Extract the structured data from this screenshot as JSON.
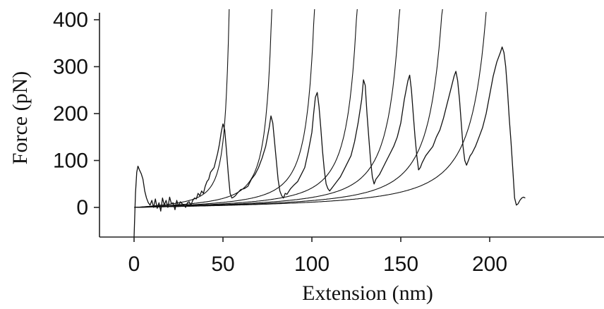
{
  "chart_data": {
    "type": "line",
    "xlabel": "Extension (nm)",
    "ylabel": "Force (pN)",
    "xlim": [
      -15,
      220
    ],
    "ylim": [
      -70,
      415
    ],
    "x_ticks": [
      0,
      50,
      100,
      150,
      200
    ],
    "y_ticks": [
      0,
      100,
      200,
      300,
      400
    ],
    "grid": false,
    "legend": "none",
    "series": [
      {
        "x": [
          0,
          0.8,
          1.5,
          2.2,
          3,
          4,
          5,
          6,
          7,
          8,
          9,
          10,
          11,
          12,
          13,
          14,
          15,
          16,
          17,
          18,
          19,
          20,
          21,
          22,
          23,
          24,
          25,
          26,
          27,
          28,
          29,
          30,
          31,
          32,
          33,
          34,
          35,
          36,
          37,
          38,
          39,
          40,
          41,
          42,
          43,
          44,
          45,
          46,
          47,
          48,
          49,
          50,
          51,
          52,
          53,
          54,
          55,
          56,
          57,
          58,
          60,
          62,
          64,
          66,
          68,
          70,
          72,
          74,
          76,
          77,
          78,
          79,
          80,
          81,
          82,
          83,
          84,
          85,
          86,
          88,
          90,
          92,
          94,
          96,
          98,
          100,
          101,
          102,
          103,
          104,
          105,
          106,
          107,
          108,
          109,
          110,
          112,
          114,
          116,
          118,
          120,
          122,
          124,
          126,
          128,
          129,
          130,
          131,
          132,
          133,
          134,
          135,
          136,
          138,
          140,
          142,
          144,
          146,
          148,
          150,
          152,
          154,
          155,
          156,
          157,
          158,
          159,
          160,
          161,
          162,
          164,
          166,
          168,
          170,
          172,
          174,
          176,
          178,
          180,
          181,
          182,
          183,
          184,
          185,
          186,
          187,
          188,
          189,
          190,
          192,
          194,
          196,
          198,
          200,
          202,
          204,
          206,
          207,
          208,
          209,
          210,
          211,
          212,
          213,
          214,
          215,
          216,
          217,
          218,
          219,
          220
        ],
        "y": [
          -65,
          30,
          75,
          88,
          80,
          72,
          60,
          35,
          20,
          10,
          5,
          15,
          0,
          18,
          -2,
          10,
          -8,
          20,
          5,
          15,
          0,
          22,
          8,
          10,
          -5,
          15,
          2,
          12,
          8,
          5,
          0,
          10,
          12,
          5,
          15,
          20,
          18,
          30,
          25,
          35,
          30,
          45,
          55,
          60,
          75,
          80,
          85,
          100,
          115,
          135,
          160,
          178,
          165,
          120,
          70,
          30,
          20,
          22,
          25,
          30,
          38,
          40,
          45,
          60,
          70,
          85,
          105,
          130,
          170,
          195,
          180,
          140,
          100,
          60,
          35,
          25,
          20,
          30,
          28,
          40,
          48,
          55,
          70,
          85,
          120,
          160,
          200,
          235,
          245,
          215,
          170,
          120,
          80,
          50,
          40,
          35,
          45,
          55,
          65,
          80,
          95,
          110,
          140,
          180,
          230,
          272,
          260,
          200,
          150,
          100,
          65,
          50,
          60,
          70,
          85,
          100,
          115,
          130,
          150,
          180,
          230,
          270,
          282,
          250,
          200,
          150,
          110,
          80,
          85,
          95,
          110,
          120,
          130,
          150,
          165,
          190,
          220,
          250,
          280,
          290,
          270,
          230,
          180,
          130,
          100,
          90,
          100,
          110,
          115,
          130,
          150,
          170,
          200,
          240,
          280,
          310,
          330,
          342,
          330,
          300,
          250,
          190,
          140,
          80,
          20,
          5,
          8,
          15,
          20,
          22,
          20
        ]
      }
    ],
    "fits": [
      {
        "contour_length": 58,
        "persistence_length": 0.4,
        "offset": 0
      },
      {
        "contour_length": 84,
        "persistence_length": 0.4,
        "offset": 0
      },
      {
        "contour_length": 110,
        "persistence_length": 0.4,
        "offset": 0
      },
      {
        "contour_length": 136,
        "persistence_length": 0.4,
        "offset": 0
      },
      {
        "contour_length": 162,
        "persistence_length": 0.4,
        "offset": 0
      },
      {
        "contour_length": 188,
        "persistence_length": 0.4,
        "offset": 0
      },
      {
        "contour_length": 215,
        "persistence_length": 0.4,
        "offset": 0
      }
    ]
  }
}
